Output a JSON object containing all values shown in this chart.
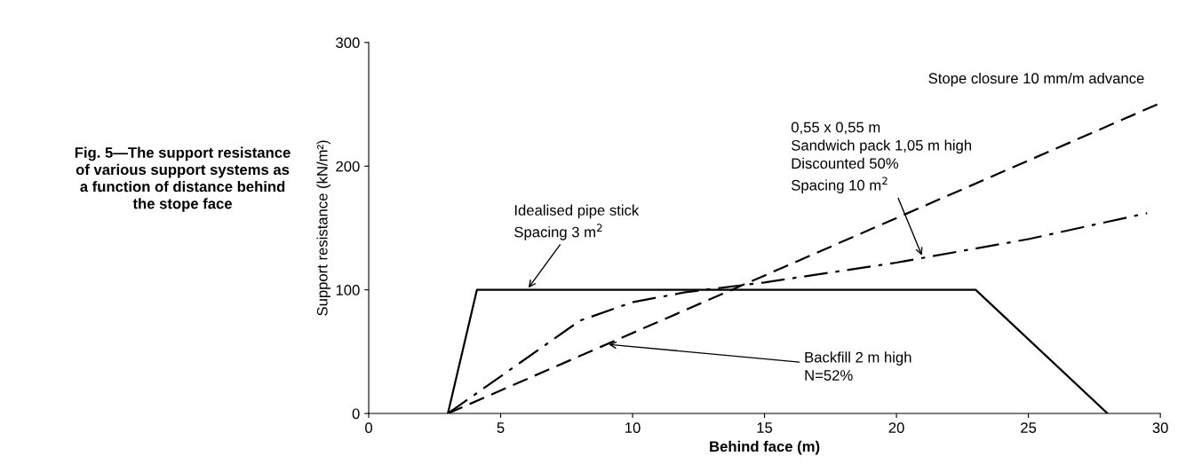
{
  "chart_data": {
    "type": "line",
    "title": "Fig. 5—The support resistance\nof various support systems as\na function of distance behind\nthe stope face",
    "xlabel": "Behind face (m)",
    "ylabel": "Support resistance (kN/m²)",
    "xlim": [
      0,
      30
    ],
    "xticks": [
      0,
      5,
      10,
      15,
      20,
      25,
      30
    ],
    "ylim": [
      0,
      300
    ],
    "yticks": [
      0,
      100,
      200,
      300
    ],
    "grid": false,
    "marker": "none",
    "series": [
      {
        "color": "#000000",
        "line_style": "solid",
        "x": [
          3,
          4.1,
          23,
          28
        ],
        "values": [
          0,
          100,
          100,
          0
        ]
      },
      {
        "color": "#000000",
        "line_style": "dashed",
        "x": [
          3,
          30
        ],
        "values": [
          0,
          251
        ]
      },
      {
        "color": "#000000",
        "line_style": "dashdot",
        "x": [
          3,
          8,
          10,
          12,
          15,
          20,
          25,
          29.5
        ],
        "values": [
          0,
          75,
          90,
          98,
          106,
          122,
          141,
          162
        ]
      }
    ],
    "annotations": [
      "Stope closure 10 mm/m advance",
      {
        "text": "Idealised pipe stick\nSpacing 3 m$^{2}$",
        "x": 6,
        "y": 100
      },
      {
        "text": "Backfill 2 m high\nN=52%",
        "x": 9,
        "y": 56
      },
      {
        "text": "0,55 x 0,55 m\nSandwich pack 1,05 m high\nDiscounted 50%\nSpacing 10 m$^{2}$",
        "x": 21,
        "y": 126
      }
    ]
  }
}
